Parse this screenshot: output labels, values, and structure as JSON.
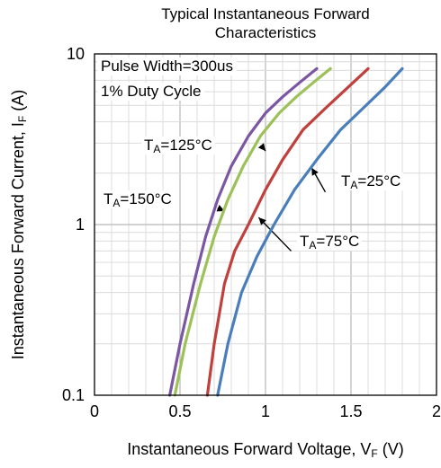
{
  "chart_data": {
    "type": "line",
    "title_line1": "Typical Instantaneous Forward",
    "title_line2": "Characteristics",
    "xlabel_main": "Instantaneous Forward Voltage, V",
    "xlabel_sub": "F",
    "xlabel_unit": " (V)",
    "ylabel_main": "Instantaneous Forward Current, I",
    "ylabel_sub": "F",
    "ylabel_unit": " (A)",
    "xlim": [
      0,
      2
    ],
    "ylim": [
      0.1,
      10
    ],
    "yscale": "log",
    "grid": true,
    "x_ticks": [
      "0",
      "0.5",
      "1",
      "1.5",
      "2"
    ],
    "y_ticks": [
      "10",
      "1",
      "0.1"
    ],
    "notes": [
      "Pulse Width=300us",
      "1% Duty Cycle"
    ],
    "series": [
      {
        "name": "TA=150°C",
        "color": "#7b56a2",
        "x": [
          0.44,
          0.5,
          0.58,
          0.65,
          0.72,
          0.8,
          0.9,
          1.0,
          1.1,
          1.2,
          1.3
        ],
        "y": [
          0.1,
          0.2,
          0.45,
          0.85,
          1.4,
          2.2,
          3.3,
          4.5,
          5.6,
          6.8,
          8.2
        ]
      },
      {
        "name": "TA=125°C",
        "color": "#9cc158",
        "x": [
          0.47,
          0.53,
          0.62,
          0.7,
          0.78,
          0.87,
          0.97,
          1.08,
          1.18,
          1.28,
          1.38
        ],
        "y": [
          0.1,
          0.2,
          0.45,
          0.85,
          1.4,
          2.2,
          3.3,
          4.5,
          5.6,
          6.8,
          8.2
        ]
      },
      {
        "name": "TA=75°C",
        "color": "#c0403d",
        "x": [
          0.66,
          0.7,
          0.76,
          0.82,
          0.9,
          1.0,
          1.1,
          1.22,
          1.35,
          1.47,
          1.6
        ],
        "y": [
          0.1,
          0.2,
          0.45,
          0.7,
          1.0,
          1.6,
          2.4,
          3.6,
          4.8,
          6.2,
          8.2
        ]
      },
      {
        "name": "TA=25°C",
        "color": "#4a7ebb",
        "x": [
          0.72,
          0.78,
          0.86,
          0.95,
          1.05,
          1.17,
          1.3,
          1.44,
          1.57,
          1.7,
          1.8
        ],
        "y": [
          0.1,
          0.2,
          0.4,
          0.65,
          1.0,
          1.6,
          2.4,
          3.6,
          4.8,
          6.4,
          8.2
        ]
      }
    ],
    "annotations": [
      {
        "main": "T",
        "sub": "A",
        "rest": "=125°C"
      },
      {
        "main": "T",
        "sub": "A",
        "rest": "=150°C"
      },
      {
        "main": "T",
        "sub": "A",
        "rest": "=25°C"
      },
      {
        "main": "T",
        "sub": "A",
        "rest": "=75°C"
      }
    ]
  }
}
